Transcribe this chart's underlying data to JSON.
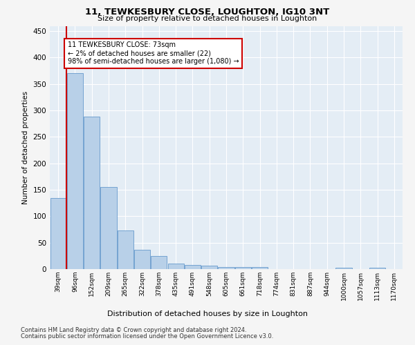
{
  "title": "11, TEWKESBURY CLOSE, LOUGHTON, IG10 3NT",
  "subtitle": "Size of property relative to detached houses in Loughton",
  "xlabel_bottom": "Distribution of detached houses by size in Loughton",
  "ylabel": "Number of detached properties",
  "categories": [
    "39sqm",
    "96sqm",
    "152sqm",
    "209sqm",
    "265sqm",
    "322sqm",
    "378sqm",
    "435sqm",
    "491sqm",
    "548sqm",
    "605sqm",
    "661sqm",
    "718sqm",
    "774sqm",
    "831sqm",
    "887sqm",
    "944sqm",
    "1000sqm",
    "1057sqm",
    "1113sqm",
    "1170sqm"
  ],
  "values": [
    135,
    370,
    288,
    155,
    73,
    37,
    25,
    10,
    8,
    6,
    4,
    4,
    4,
    0,
    0,
    0,
    0,
    3,
    0,
    3,
    0
  ],
  "bar_color": "#b8d0e8",
  "bar_edge_color": "#6699cc",
  "highlight_line_color": "#cc0000",
  "annotation_line1": "11 TEWKESBURY CLOSE: 73sqm",
  "annotation_line2": "← 2% of detached houses are smaller (22)",
  "annotation_line3": "98% of semi-detached houses are larger (1,080) →",
  "annotation_box_color": "#cc0000",
  "ylim": [
    0,
    460
  ],
  "yticks": [
    0,
    50,
    100,
    150,
    200,
    250,
    300,
    350,
    400,
    450
  ],
  "background_color": "#dde8f0",
  "plot_bg_color": "#e4edf5",
  "grid_color": "#ffffff",
  "footer_line1": "Contains HM Land Registry data © Crown copyright and database right 2024.",
  "footer_line2": "Contains public sector information licensed under the Open Government Licence v3.0."
}
